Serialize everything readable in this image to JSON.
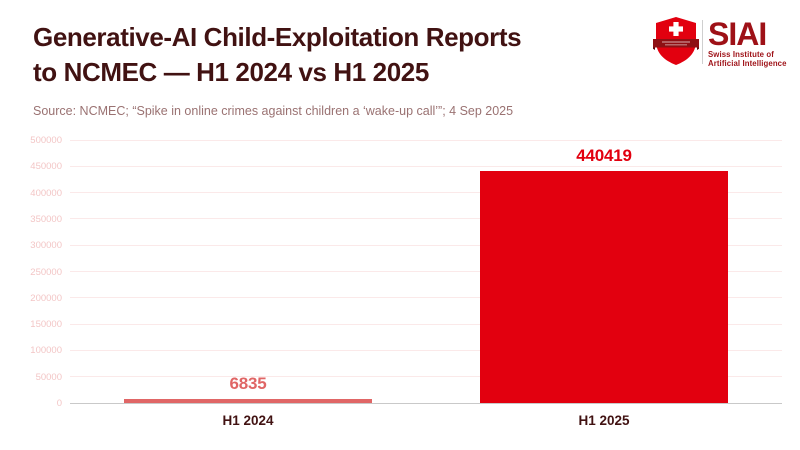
{
  "header": {
    "title_line1": "Generative-AI Child-Exploitation Reports",
    "title_line2": "to NCMEC — H1 2024 vs H1 2025",
    "source_line": "Source: NCMEC; “Spike in online crimes against children a ‘wake-up call’”; 4 Sep 2025"
  },
  "logo": {
    "acronym": "SIAI",
    "name_line1": "Swiss Institute of",
    "name_line2": "Artificial Intelligence",
    "shield_red": "#e2000f",
    "ribbon_dark_red": "#8e1014",
    "text_dark_red": "#9e1117"
  },
  "colors": {
    "background": "#ffffff",
    "title_text": "#411212",
    "subtitle_text": "#9a7272",
    "ytick_text": "#f3c6c6",
    "gridline": "#fbe9e9",
    "axis_line": "#c9c9c9",
    "xtick_text": "#411212"
  },
  "chart_data": {
    "type": "bar",
    "title": "Generative-AI Child-Exploitation Reports to NCMEC — H1 2024 vs H1 2025",
    "categories": [
      "H1 2024",
      "H1 2025"
    ],
    "values": [
      6835,
      440419
    ],
    "value_labels": [
      "6835",
      "440419"
    ],
    "bar_colors": [
      "#e06666",
      "#e2000f"
    ],
    "value_label_colors": [
      "#e06666",
      "#e2000f"
    ],
    "xlabel": "",
    "ylabel": "",
    "ylim": [
      0,
      500000
    ],
    "ytick_step": 50000,
    "ytick_labels": [
      "0",
      "50000",
      "100000",
      "150000",
      "200000",
      "250000",
      "300000",
      "350000",
      "400000",
      "450000",
      "500000"
    ],
    "grid": true,
    "legend": false
  }
}
